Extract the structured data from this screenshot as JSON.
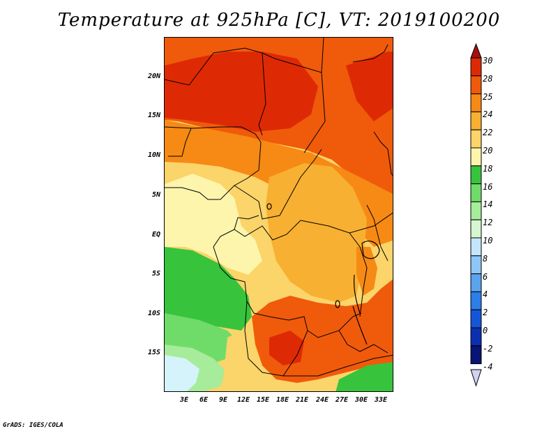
{
  "title": "Temperature at 925hPa [C], VT: 2019100200",
  "footer": "GrADS: IGES/COLA",
  "y_ticks": [
    "20N",
    "15N",
    "10N",
    "5N",
    "EQ",
    "5S",
    "10S",
    "15S"
  ],
  "x_ticks": [
    "3E",
    "6E",
    "9E",
    "12E",
    "15E",
    "18E",
    "21E",
    "24E",
    "27E",
    "30E",
    "33E"
  ],
  "colorbar": {
    "labels": [
      "30",
      "28",
      "25",
      "24",
      "22",
      "20",
      "18",
      "16",
      "14",
      "12",
      "10",
      "8",
      "6",
      "4",
      "2",
      "0",
      "-2",
      "-4"
    ],
    "colors": [
      "#a50f0f",
      "#dd2a05",
      "#f05a0b",
      "#f68a14",
      "#f8b032",
      "#fbd46a",
      "#fdf5ab",
      "#38c33c",
      "#6fdc6a",
      "#a6ec9a",
      "#d7f7d1",
      "#c4e6fb",
      "#8ec7f6",
      "#5aa4ee",
      "#2d7ee6",
      "#1556d8",
      "#0a2fb1",
      "#081476",
      "#d2d2f5"
    ]
  },
  "map": {
    "colors": {
      "hot": "#dd2a05",
      "orange_red": "#f05a0b",
      "orange": "#f68a14",
      "light_orange": "#f8b032",
      "yellow": "#fbd46a",
      "pale_yellow": "#fdf5ab",
      "green": "#38c33c",
      "light_green": "#6fdc6a",
      "pale_green": "#a6ec9a",
      "very_pale_green": "#d7f7d1",
      "light_blue": "#d4f3fb"
    }
  }
}
